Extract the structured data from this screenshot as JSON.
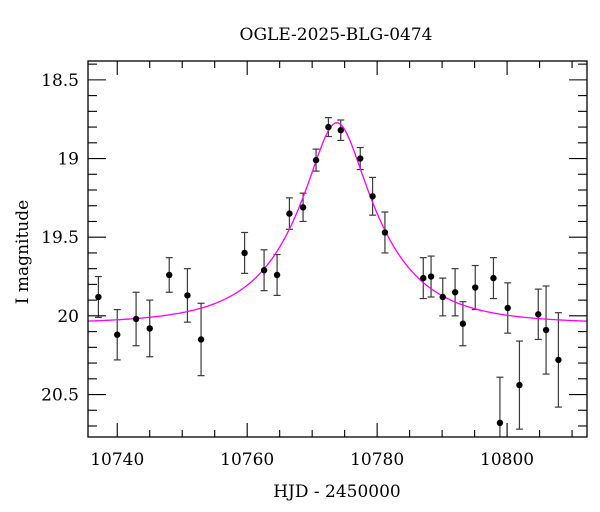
{
  "chart_data": {
    "type": "scatter",
    "title": "OGLE-2025-BLG-0474",
    "xlabel": "HJD - 2450000",
    "ylabel": "I magnitude",
    "xlim": [
      10735.5,
      10812.3
    ],
    "ylim": [
      20.77,
      18.38
    ],
    "y_axis_inverted": true,
    "grid": false,
    "x_major_ticks": [
      {
        "v": 10740,
        "label": "10740"
      },
      {
        "v": 10760,
        "label": "10760"
      },
      {
        "v": 10780,
        "label": "10780"
      },
      {
        "v": 10800,
        "label": "10800"
      }
    ],
    "x_minor_ticks": [
      10745,
      10750,
      10755,
      10765,
      10770,
      10775,
      10785,
      10790,
      10795,
      10805,
      10810
    ],
    "y_major_ticks": [
      {
        "v": 18.5,
        "label": "18.5"
      },
      {
        "v": 19.0,
        "label": "19"
      },
      {
        "v": 19.5,
        "label": "19.5"
      },
      {
        "v": 20.0,
        "label": "20"
      },
      {
        "v": 20.5,
        "label": "20.5"
      }
    ],
    "y_minor_ticks": [
      18.4,
      18.6,
      18.7,
      18.8,
      18.9,
      19.1,
      19.2,
      19.3,
      19.4,
      19.6,
      19.7,
      19.8,
      19.9,
      20.1,
      20.2,
      20.3,
      20.4,
      20.6,
      20.7
    ],
    "point_color": "#000000",
    "error_bar_color": "#3a3a3a",
    "axis_color": "#000000",
    "points": [
      {
        "t": 10737.1,
        "mag": 19.88,
        "err": 0.13
      },
      {
        "t": 10740.0,
        "mag": 20.12,
        "err": 0.16
      },
      {
        "t": 10742.9,
        "mag": 20.02,
        "err": 0.17
      },
      {
        "t": 10745.0,
        "mag": 20.08,
        "err": 0.18
      },
      {
        "t": 10748.0,
        "mag": 19.74,
        "err": 0.11
      },
      {
        "t": 10750.8,
        "mag": 19.87,
        "err": 0.17
      },
      {
        "t": 10752.9,
        "mag": 20.15,
        "err": 0.23
      },
      {
        "t": 10759.6,
        "mag": 19.6,
        "err": 0.13
      },
      {
        "t": 10762.6,
        "mag": 19.71,
        "err": 0.13
      },
      {
        "t": 10764.6,
        "mag": 19.74,
        "err": 0.13
      },
      {
        "t": 10766.5,
        "mag": 19.35,
        "err": 0.1
      },
      {
        "t": 10768.6,
        "mag": 19.31,
        "err": 0.09
      },
      {
        "t": 10770.6,
        "mag": 19.01,
        "err": 0.07
      },
      {
        "t": 10772.5,
        "mag": 18.8,
        "err": 0.06
      },
      {
        "t": 10774.4,
        "mag": 18.82,
        "err": 0.065
      },
      {
        "t": 10777.4,
        "mag": 19.0,
        "err": 0.07
      },
      {
        "t": 10779.3,
        "mag": 19.24,
        "err": 0.12
      },
      {
        "t": 10781.2,
        "mag": 19.47,
        "err": 0.13
      },
      {
        "t": 10787.1,
        "mag": 19.76,
        "err": 0.13
      },
      {
        "t": 10788.3,
        "mag": 19.75,
        "err": 0.13
      },
      {
        "t": 10790.1,
        "mag": 19.88,
        "err": 0.12
      },
      {
        "t": 10792.0,
        "mag": 19.85,
        "err": 0.15
      },
      {
        "t": 10793.2,
        "mag": 20.05,
        "err": 0.14
      },
      {
        "t": 10795.1,
        "mag": 19.82,
        "err": 0.14
      },
      {
        "t": 10797.9,
        "mag": 19.76,
        "err": 0.13
      },
      {
        "t": 10798.9,
        "mag": 20.68,
        "err": 0.29
      },
      {
        "t": 10800.1,
        "mag": 19.95,
        "err": 0.16
      },
      {
        "t": 10801.9,
        "mag": 20.44,
        "err": 0.28
      },
      {
        "t": 10804.8,
        "mag": 19.99,
        "err": 0.16
      },
      {
        "t": 10806.0,
        "mag": 20.09,
        "err": 0.28
      },
      {
        "t": 10807.9,
        "mag": 20.28,
        "err": 0.3
      }
    ],
    "model_curve": {
      "type": "PSPL-microlensing-fit",
      "color": "#ff00ff",
      "t0": 10773.8,
      "tE_days": 12.5,
      "u0": 0.32,
      "baseline_mag": 20.05,
      "peak_mag": 18.77
    }
  }
}
